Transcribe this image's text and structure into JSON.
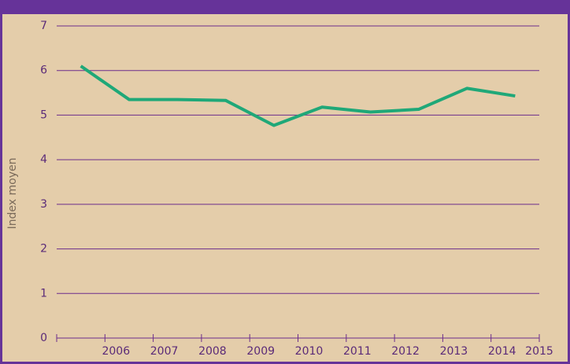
{
  "chart_data": {
    "type": "line",
    "y_label": "Index moyen",
    "categories": [
      "2006",
      "2007",
      "2008",
      "2009",
      "2010",
      "2011",
      "2012",
      "2013",
      "2014",
      "2015"
    ],
    "series": [
      {
        "name": "Index moyen",
        "color": "#1fa878",
        "values": [
          6.1,
          5.35,
          5.35,
          5.33,
          4.77,
          5.18,
          5.07,
          5.13,
          5.6,
          5.43
        ]
      }
    ],
    "ylim": [
      0,
      7
    ],
    "yticks": [
      0,
      1,
      2,
      3,
      4,
      5,
      6,
      7
    ],
    "grid": true
  }
}
